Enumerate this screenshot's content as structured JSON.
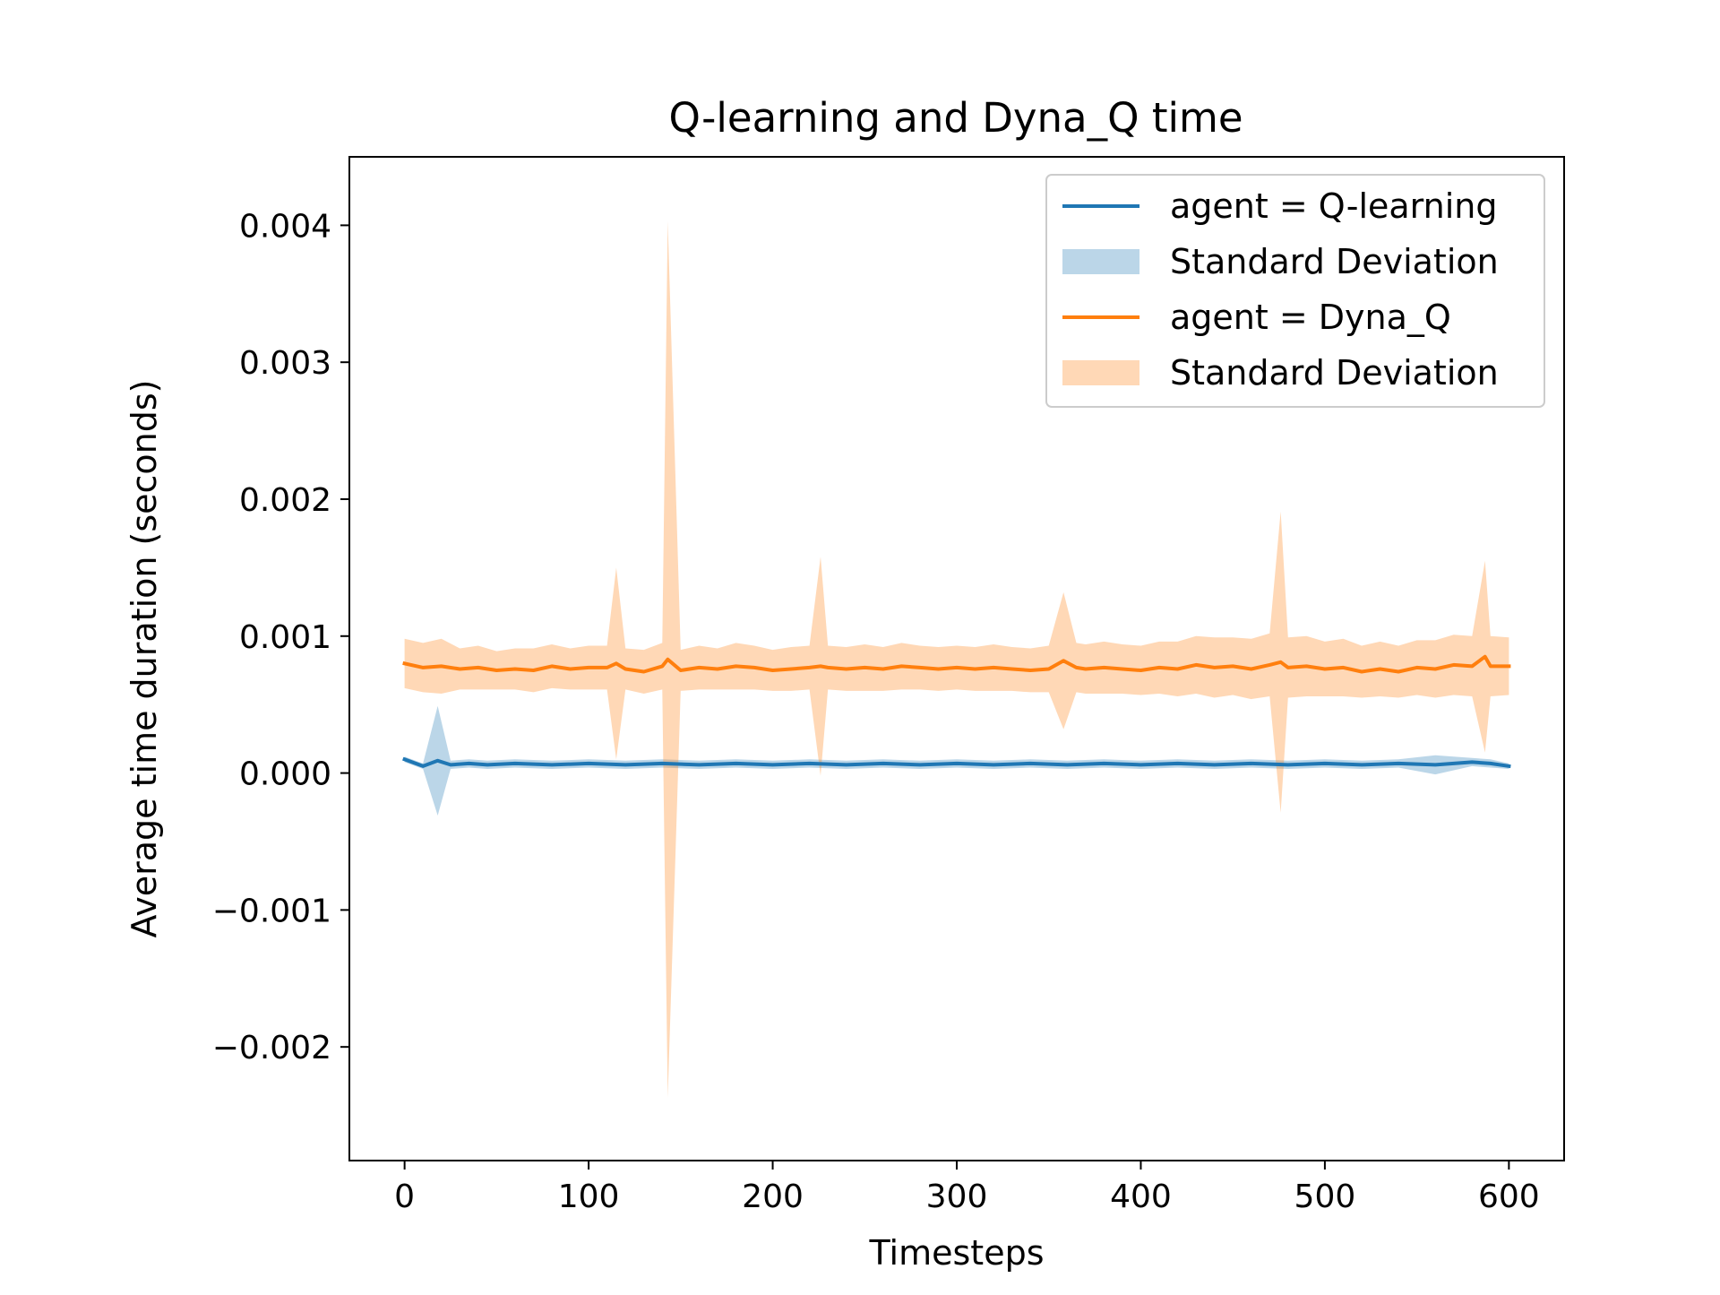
{
  "chart_data": {
    "type": "line",
    "title": "Q-learning and Dyna_Q time",
    "xlabel": "Timesteps",
    "ylabel": "Average time duration (seconds)",
    "xlim": [
      -30,
      630
    ],
    "ylim": [
      -0.00283,
      0.0045
    ],
    "x_ticks": [
      0,
      100,
      200,
      300,
      400,
      500,
      600
    ],
    "x_tick_labels": [
      "0",
      "100",
      "200",
      "300",
      "400",
      "500",
      "600"
    ],
    "y_ticks": [
      -0.002,
      -0.001,
      0.0,
      0.001,
      0.002,
      0.003,
      0.004
    ],
    "y_tick_labels": [
      "−0.002",
      "−0.001",
      "0.000",
      "0.001",
      "0.002",
      "0.003",
      "0.004"
    ],
    "grid": false,
    "legend_position": "top-right",
    "legend": [
      {
        "label": "agent = Q-learning",
        "kind": "line",
        "series": 0
      },
      {
        "label": "Standard Deviation",
        "kind": "band",
        "series": 0
      },
      {
        "label": "agent = Dyna_Q",
        "kind": "line",
        "series": 1
      },
      {
        "label": "Standard Deviation",
        "kind": "band",
        "series": 1
      }
    ],
    "series": [
      {
        "name": "agent = Q-learning",
        "color": "#1f77b4",
        "band_color": "#1f77b4",
        "band_opacity": 0.3,
        "x": [
          0,
          10,
          18,
          25,
          35,
          45,
          60,
          80,
          100,
          120,
          140,
          160,
          180,
          200,
          220,
          240,
          260,
          280,
          300,
          320,
          340,
          360,
          380,
          400,
          420,
          440,
          460,
          480,
          500,
          520,
          540,
          560,
          580,
          590,
          600
        ],
        "mean": [
          0.0001,
          5e-05,
          9e-05,
          6e-05,
          7e-05,
          6e-05,
          7e-05,
          6e-05,
          7e-05,
          6e-05,
          7e-05,
          6e-05,
          7e-05,
          6e-05,
          7e-05,
          6e-05,
          7e-05,
          6e-05,
          7e-05,
          6e-05,
          7e-05,
          6e-05,
          7e-05,
          6e-05,
          7e-05,
          6e-05,
          7e-05,
          6e-05,
          7e-05,
          6e-05,
          7e-05,
          6e-05,
          8e-05,
          7e-05,
          5e-05
        ],
        "std": [
          2e-05,
          2e-05,
          0.0004,
          3e-05,
          3e-05,
          3e-05,
          3e-05,
          3e-05,
          3e-05,
          3e-05,
          3e-05,
          3e-05,
          3e-05,
          3e-05,
          3e-05,
          3e-05,
          3e-05,
          3e-05,
          3e-05,
          3e-05,
          3e-05,
          3e-05,
          3e-05,
          3e-05,
          3e-05,
          3e-05,
          3e-05,
          3e-05,
          3e-05,
          3e-05,
          3e-05,
          7e-05,
          3e-05,
          3e-05,
          2e-05
        ]
      },
      {
        "name": "agent = Dyna_Q",
        "color": "#ff7f0e",
        "band_color": "#ff7f0e",
        "band_opacity": 0.3,
        "x": [
          0,
          10,
          20,
          30,
          40,
          50,
          60,
          70,
          80,
          90,
          100,
          110,
          115,
          120,
          130,
          140,
          143,
          150,
          160,
          170,
          180,
          190,
          200,
          210,
          220,
          226,
          230,
          240,
          250,
          260,
          270,
          280,
          290,
          300,
          310,
          320,
          330,
          340,
          350,
          358,
          365,
          370,
          380,
          390,
          400,
          410,
          420,
          430,
          440,
          450,
          460,
          470,
          476,
          480,
          490,
          500,
          510,
          520,
          530,
          540,
          550,
          560,
          570,
          580,
          587,
          590,
          600
        ],
        "mean": [
          0.0008,
          0.00077,
          0.00078,
          0.00076,
          0.00077,
          0.00075,
          0.00076,
          0.00075,
          0.00078,
          0.00076,
          0.00077,
          0.00077,
          0.0008,
          0.00076,
          0.00074,
          0.00078,
          0.00083,
          0.00075,
          0.00077,
          0.00076,
          0.00078,
          0.00077,
          0.00075,
          0.00076,
          0.00077,
          0.00078,
          0.00077,
          0.00076,
          0.00077,
          0.00076,
          0.00078,
          0.00077,
          0.00076,
          0.00077,
          0.00076,
          0.00077,
          0.00076,
          0.00075,
          0.00076,
          0.00082,
          0.00077,
          0.00076,
          0.00077,
          0.00076,
          0.00075,
          0.00077,
          0.00076,
          0.00079,
          0.00077,
          0.00078,
          0.00076,
          0.00079,
          0.00081,
          0.00077,
          0.00078,
          0.00076,
          0.00077,
          0.00074,
          0.00076,
          0.00074,
          0.00077,
          0.00076,
          0.00079,
          0.00078,
          0.00085,
          0.00078,
          0.00078
        ],
        "std": [
          0.00018,
          0.00018,
          0.0002,
          0.00015,
          0.00016,
          0.00014,
          0.00015,
          0.00016,
          0.00016,
          0.00015,
          0.00016,
          0.00016,
          0.0007,
          0.00015,
          0.00016,
          0.00017,
          0.0032,
          0.00015,
          0.00016,
          0.00015,
          0.00017,
          0.00016,
          0.00015,
          0.00016,
          0.00016,
          0.0008,
          0.00016,
          0.00016,
          0.00017,
          0.00016,
          0.00017,
          0.00016,
          0.00016,
          0.00016,
          0.00016,
          0.00017,
          0.00016,
          0.00016,
          0.00017,
          0.0005,
          0.00018,
          0.00018,
          0.00019,
          0.00018,
          0.00018,
          0.00019,
          0.0002,
          0.00021,
          0.00022,
          0.00021,
          0.00022,
          0.00023,
          0.0011,
          0.00022,
          0.00022,
          0.0002,
          0.00021,
          0.00019,
          0.0002,
          0.00019,
          0.0002,
          0.00021,
          0.00022,
          0.00022,
          0.0007,
          0.00022,
          0.00021
        ]
      }
    ]
  }
}
